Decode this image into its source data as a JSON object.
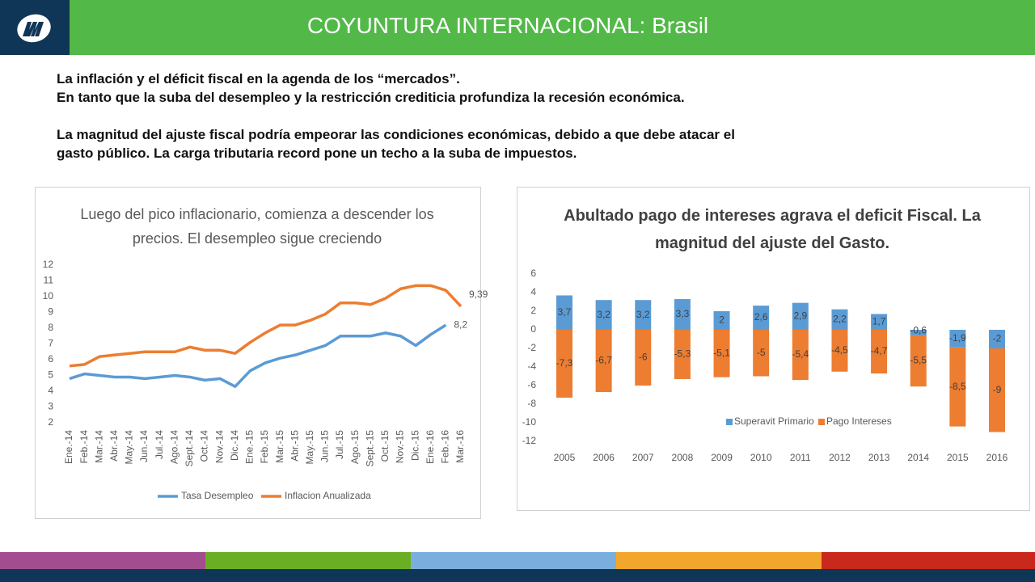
{
  "header": {
    "title": "COYUNTURA INTERNACIONAL: Brasil"
  },
  "body": {
    "lines": [
      "La inflación y el déficit fiscal en la agenda de los “mercados”.",
      "En tanto que la suba del desempleo y la restricción crediticia profundiza la recesión económica.",
      "La magnitud del ajuste fiscal podría empeorar las condiciones económicas, debido a que debe atacar el",
      "gasto público. La carga tributaria record pone un techo a la suba de impuestos."
    ]
  },
  "chart_data": [
    {
      "type": "line",
      "title": "Luego del pico inflacionario, comienza a descender los precios. El desempleo sigue creciendo",
      "categories": [
        "Ene.-14",
        "Feb.-14",
        "Mar.-14",
        "Abr.-14",
        "May.-14",
        "Jun.-14",
        "Jul.-14",
        "Ago.-14",
        "Sept.-14",
        "Oct.-14",
        "Nov.-14",
        "Dic.-14",
        "Ene.-15",
        "Feb.-15",
        "Mar.-15",
        "Abr.-15",
        "May.-15",
        "Jun.-15",
        "Jul.-15",
        "Ago.-15",
        "Sept.-15",
        "Oct.-15",
        "Nov.-15",
        "Dic.-15",
        "Ene.-16",
        "Feb.-16",
        "Mar.-16"
      ],
      "series": [
        {
          "name": "Tasa Desempleo",
          "color": "#5b9bd5",
          "values": [
            4.8,
            5.1,
            5.0,
            4.9,
            4.9,
            4.8,
            4.9,
            5.0,
            4.9,
            4.7,
            4.8,
            4.3,
            5.3,
            5.8,
            6.1,
            6.3,
            6.6,
            6.9,
            7.5,
            7.5,
            7.5,
            7.7,
            7.5,
            6.9,
            7.6,
            8.2,
            null
          ],
          "value_labels": [
            null,
            null,
            null,
            null,
            null,
            null,
            null,
            null,
            null,
            null,
            null,
            null,
            null,
            null,
            null,
            null,
            null,
            null,
            null,
            null,
            null,
            null,
            null,
            null,
            null,
            "8,2",
            null
          ]
        },
        {
          "name": "Inflacion Anualizada",
          "color": "#ed7d31",
          "values": [
            5.6,
            5.7,
            6.2,
            6.3,
            6.4,
            6.5,
            6.5,
            6.5,
            6.8,
            6.6,
            6.6,
            6.4,
            7.1,
            7.7,
            8.2,
            8.2,
            8.5,
            8.9,
            9.6,
            9.6,
            9.5,
            9.9,
            10.5,
            10.7,
            10.7,
            10.4,
            9.39
          ],
          "value_labels": [
            null,
            null,
            null,
            null,
            null,
            null,
            null,
            null,
            null,
            null,
            null,
            null,
            null,
            null,
            null,
            null,
            null,
            null,
            null,
            null,
            null,
            null,
            null,
            null,
            null,
            null,
            "9,39"
          ]
        }
      ],
      "ylim": [
        2,
        12
      ],
      "yticks": [
        2,
        3,
        4,
        5,
        6,
        7,
        8,
        9,
        10,
        11,
        12
      ],
      "grid": false,
      "legend": "bottom"
    },
    {
      "type": "bar",
      "title": "Abultado pago de intereses agrava el deficit Fiscal. La magnitud del ajuste del Gasto.",
      "categories": [
        "2005",
        "2006",
        "2007",
        "2008",
        "2009",
        "2010",
        "2011",
        "2012",
        "2013",
        "2014",
        "2015",
        "2016"
      ],
      "series": [
        {
          "name": "Superavit Primario",
          "color": "#5b9bd5",
          "values": [
            3.7,
            3.2,
            3.2,
            3.3,
            2,
            2.6,
            2.9,
            2.2,
            1.7,
            -0.6,
            -1.9,
            -2
          ],
          "value_labels": [
            "3,7",
            "3,2",
            "3,2",
            "3,3",
            "2",
            "2,6",
            "2,9",
            "2,2",
            "1,7",
            "-0,6",
            "-1,9",
            "-2"
          ]
        },
        {
          "name": "Pago Intereses",
          "color": "#ed7d31",
          "values": [
            -7.3,
            -6.7,
            -6,
            -5.3,
            -5.1,
            -5,
            -5.4,
            -4.5,
            -4.7,
            -5.5,
            -8.5,
            -9
          ],
          "value_labels": [
            "-7,3",
            "-6,7",
            "-6",
            "-5,3",
            "-5,1",
            "-5",
            "-5,4",
            "-4,5",
            "-4,7",
            "-5,5",
            "-8,5",
            "-9"
          ]
        }
      ],
      "stacked": true,
      "ylim": [
        -12,
        6
      ],
      "yticks": [
        -12,
        -10,
        -8,
        -6,
        -4,
        -2,
        0,
        2,
        4,
        6
      ],
      "grid": false,
      "legend": "bottom"
    }
  ]
}
